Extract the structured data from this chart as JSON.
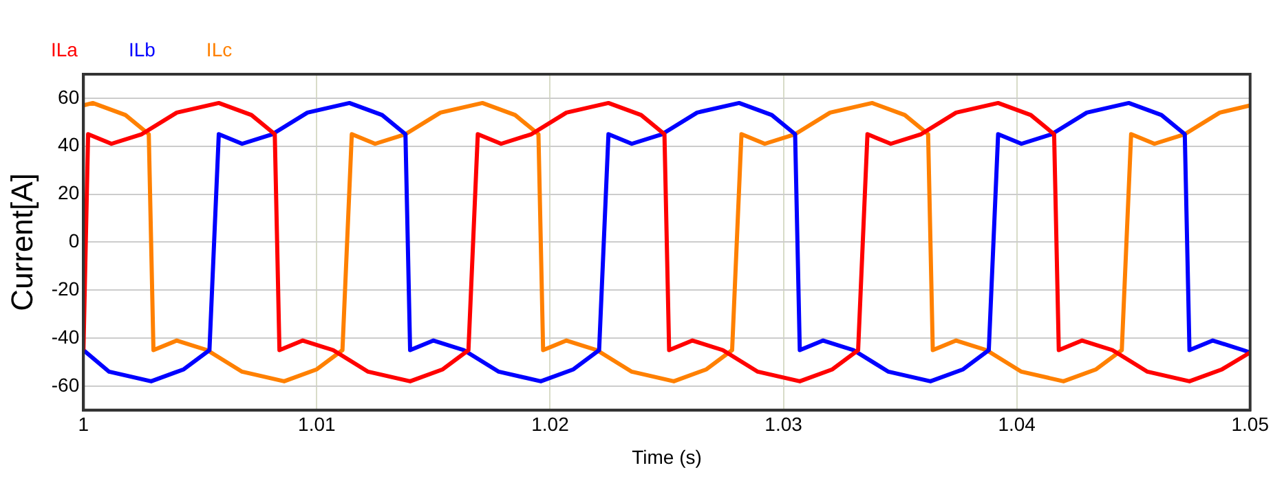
{
  "chart_data": {
    "type": "line",
    "xlabel": "Time (s)",
    "ylabel": "Current[A]",
    "xlim": [
      1,
      1.05
    ],
    "xticks": [
      1,
      1.01,
      1.02,
      1.03,
      1.04,
      1.05
    ],
    "ylim": [
      -70,
      70
    ],
    "yticks": [
      -60,
      -40,
      -20,
      0,
      20,
      40,
      60
    ],
    "grid": true,
    "legend": "top left",
    "marker": "none",
    "line_style": "solid",
    "series": [
      {
        "name": "ILa",
        "color": "#ff0000",
        "x": [
          1,
          1.0002,
          1.0012,
          1.0025,
          1.004,
          1.0058,
          1.0072,
          1.0082,
          1.0084,
          1.0094,
          1.0107,
          1.0122,
          1.014,
          1.0154,
          1.0165,
          1.0169,
          1.0179,
          1.0192,
          1.0207,
          1.0225,
          1.0239,
          1.0249,
          1.0251,
          1.0261,
          1.0274,
          1.0289,
          1.0307,
          1.0321,
          1.0332,
          1.0336,
          1.0346,
          1.0359,
          1.0374,
          1.0392,
          1.0406,
          1.0416,
          1.0418,
          1.0428,
          1.0441,
          1.0456,
          1.0474,
          1.0488,
          1.05
        ],
        "values": [
          -45,
          45,
          41,
          45,
          54,
          58,
          53,
          45,
          -45,
          -41,
          -45,
          -54,
          -58,
          -53,
          -45,
          45,
          41,
          45,
          54,
          58,
          53,
          45,
          -45,
          -41,
          -45,
          -54,
          -58,
          -53,
          -45,
          45,
          41,
          45,
          54,
          58,
          53,
          45,
          -45,
          -41,
          -45,
          -54,
          -58,
          -53,
          -46
        ]
      },
      {
        "name": "ILb",
        "color": "#0000ff",
        "x": [
          1,
          1.0011,
          1.0029,
          1.0043,
          1.0054,
          1.0058,
          1.0068,
          1.0081,
          1.0096,
          1.0114,
          1.0128,
          1.0138,
          1.014,
          1.015,
          1.0163,
          1.0178,
          1.0196,
          1.021,
          1.0221,
          1.0225,
          1.0235,
          1.0248,
          1.0263,
          1.0281,
          1.0295,
          1.0305,
          1.0307,
          1.0317,
          1.033,
          1.0345,
          1.0363,
          1.0377,
          1.0388,
          1.0392,
          1.0402,
          1.0415,
          1.043,
          1.0448,
          1.0462,
          1.0472,
          1.0474,
          1.0484,
          1.0497,
          1.05
        ],
        "values": [
          -45,
          -54,
          -58,
          -53,
          -45,
          45,
          41,
          45,
          54,
          58,
          53,
          45,
          -45,
          -41,
          -45,
          -54,
          -58,
          -53,
          -45,
          45,
          41,
          45,
          54,
          58,
          53,
          45,
          -45,
          -41,
          -45,
          -54,
          -58,
          -53,
          -45,
          45,
          41,
          45,
          54,
          58,
          53,
          45,
          -45,
          -41,
          -45,
          -46
        ]
      },
      {
        "name": "ILc",
        "color": "#ff8000",
        "x": [
          1,
          1.0004,
          1.0018,
          1.0028,
          1.003,
          1.004,
          1.0053,
          1.0068,
          1.0086,
          1.01,
          1.0111,
          1.0115,
          1.0125,
          1.0138,
          1.0153,
          1.0171,
          1.0185,
          1.0195,
          1.0197,
          1.0207,
          1.022,
          1.0235,
          1.0253,
          1.0267,
          1.0278,
          1.0282,
          1.0292,
          1.0305,
          1.032,
          1.0338,
          1.0352,
          1.0362,
          1.0364,
          1.0374,
          1.0387,
          1.0402,
          1.042,
          1.0434,
          1.0445,
          1.0449,
          1.0459,
          1.0472,
          1.0487,
          1.05
        ],
        "values": [
          57,
          58,
          53,
          45,
          -45,
          -41,
          -45,
          -54,
          -58,
          -53,
          -45,
          45,
          41,
          45,
          54,
          58,
          53,
          45,
          -45,
          -41,
          -45,
          -54,
          -58,
          -53,
          -45,
          45,
          41,
          45,
          54,
          58,
          53,
          45,
          -45,
          -41,
          -45,
          -54,
          -58,
          -53,
          -45,
          45,
          41,
          45,
          54,
          57
        ]
      }
    ]
  }
}
